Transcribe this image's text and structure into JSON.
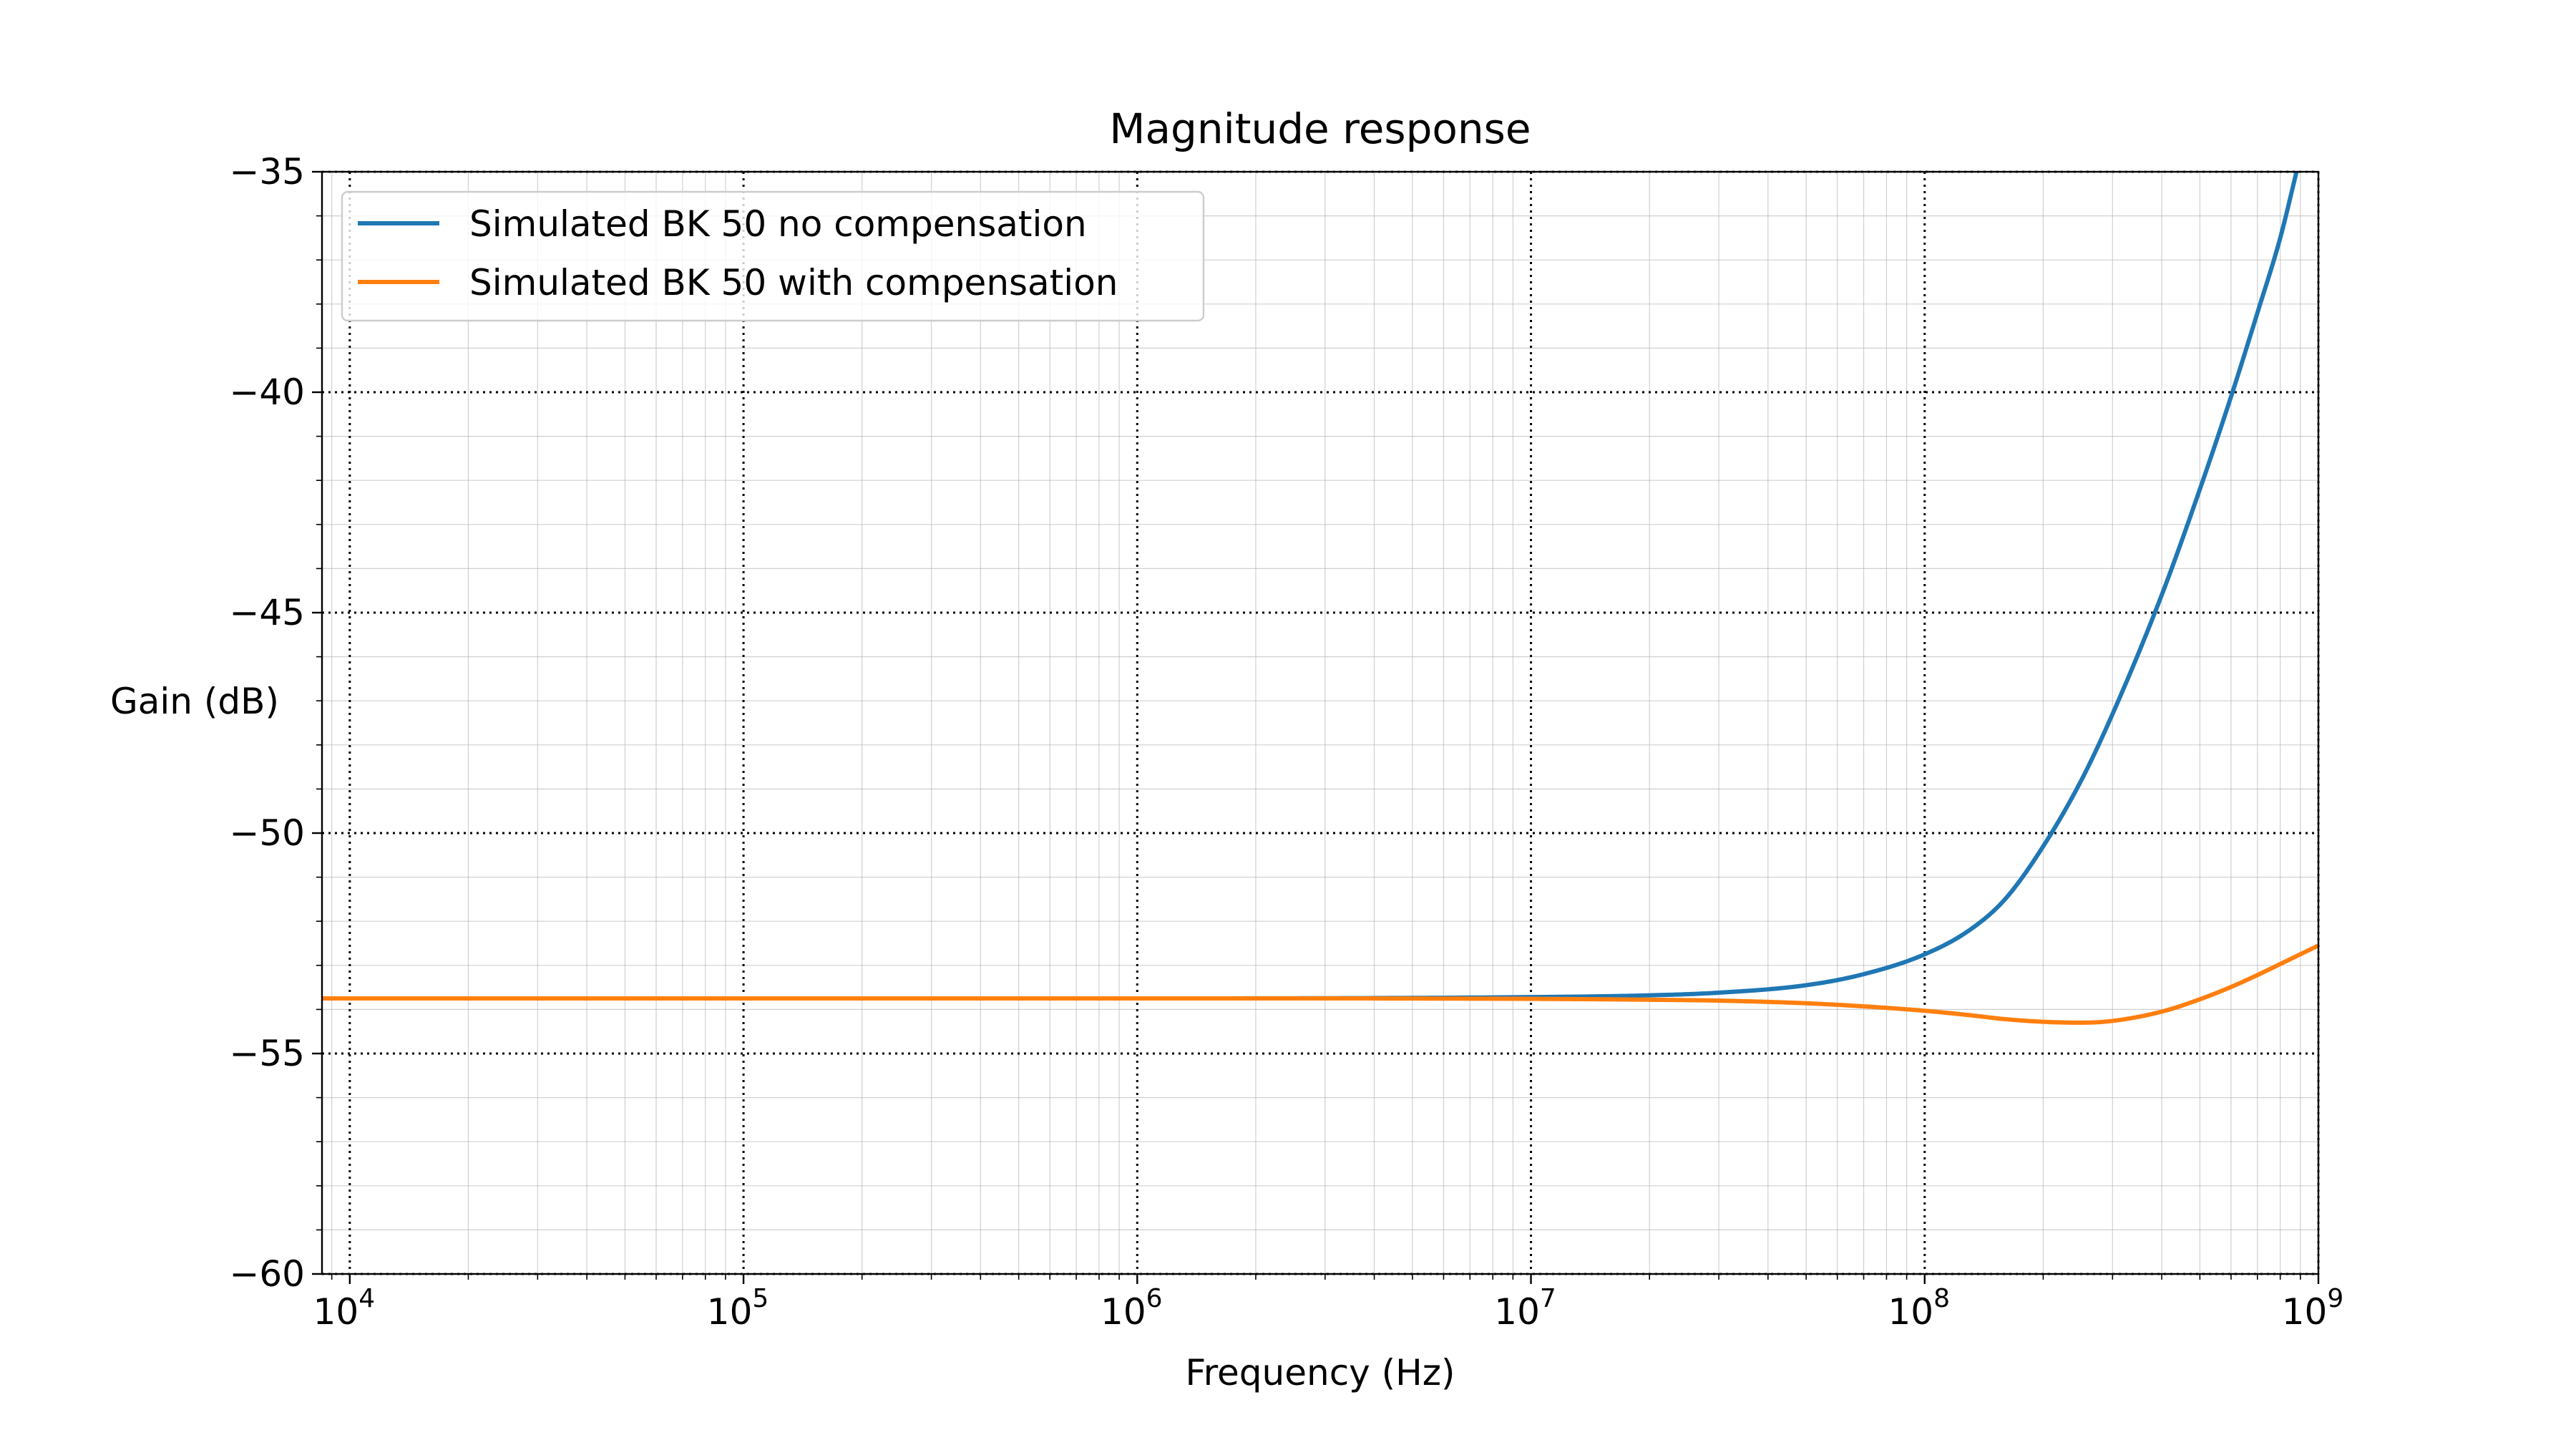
{
  "chart_data": {
    "type": "line",
    "title": "Magnitude response",
    "xlabel": "Frequency (Hz)",
    "ylabel": "Gain (dB)",
    "xscale": "log",
    "xlim": [
      8500,
      1000000000
    ],
    "ylim": [
      -60,
      -35
    ],
    "x_ticks": [
      {
        "value": 10000,
        "base": "10",
        "exp": "4"
      },
      {
        "value": 100000,
        "base": "10",
        "exp": "5"
      },
      {
        "value": 1000000,
        "base": "10",
        "exp": "6"
      },
      {
        "value": 10000000,
        "base": "10",
        "exp": "7"
      },
      {
        "value": 100000000,
        "base": "10",
        "exp": "8"
      },
      {
        "value": 1000000000,
        "base": "10",
        "exp": "9"
      }
    ],
    "y_ticks": [
      {
        "value": -35,
        "label": "−35"
      },
      {
        "value": -40,
        "label": "−40"
      },
      {
        "value": -45,
        "label": "−45"
      },
      {
        "value": -50,
        "label": "−50"
      },
      {
        "value": -55,
        "label": "−55"
      },
      {
        "value": -60,
        "label": "−60"
      }
    ],
    "grid": {
      "major": "dotted",
      "minor": "solid-light"
    },
    "legend": {
      "position": "top-left"
    },
    "series": [
      {
        "name": "Simulated BK 50 no compensation",
        "color": "#1f77b4",
        "x": [
          8500,
          10000,
          100000,
          1000000,
          10000000,
          20000000,
          30000000,
          50000000,
          70000000,
          100000000,
          130000000,
          160000000,
          200000000,
          250000000,
          300000000,
          400000000,
          500000000,
          600000000,
          700000000,
          800000000,
          880000000
        ],
        "y": [
          -53.75,
          -53.75,
          -53.75,
          -53.75,
          -53.72,
          -53.68,
          -53.62,
          -53.45,
          -53.2,
          -52.75,
          -52.2,
          -51.5,
          -50.3,
          -48.8,
          -47.3,
          -44.6,
          -42.2,
          -40.1,
          -38.2,
          -36.5,
          -35.0
        ]
      },
      {
        "name": "Simulated BK 50 with compensation",
        "color": "#ff7f0e",
        "x": [
          8500,
          10000,
          100000,
          1000000,
          10000000,
          20000000,
          30000000,
          50000000,
          70000000,
          100000000,
          130000000,
          160000000,
          200000000,
          250000000,
          300000000,
          400000000,
          500000000,
          600000000,
          700000000,
          800000000,
          1000000000
        ],
        "y": [
          -53.75,
          -53.75,
          -53.75,
          -53.75,
          -53.76,
          -53.78,
          -53.8,
          -53.86,
          -53.93,
          -54.03,
          -54.13,
          -54.22,
          -54.28,
          -54.3,
          -54.26,
          -54.05,
          -53.77,
          -53.49,
          -53.22,
          -52.97,
          -52.55
        ]
      }
    ]
  }
}
